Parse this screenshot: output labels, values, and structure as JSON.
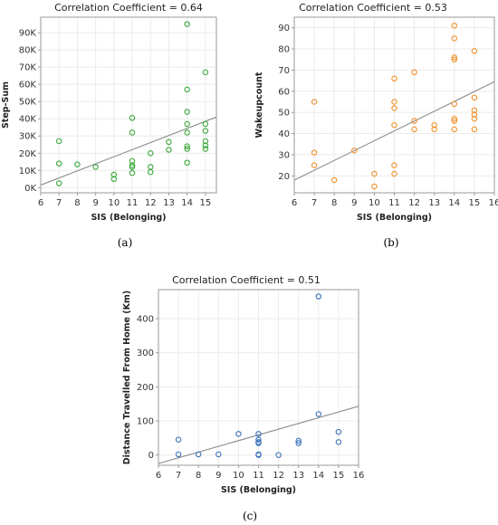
{
  "chart_data": [
    {
      "type": "scatter",
      "title": "Correlation Coefficient = 0.64",
      "xlabel": "SIS (Belonging)",
      "ylabel": "Step-Sum",
      "caption": "(a)",
      "color": "#3aa83a",
      "xlim": [
        6,
        15.6
      ],
      "ylim": [
        -3000,
        99000
      ],
      "xticks": [
        6,
        7,
        8,
        9,
        10,
        11,
        12,
        13,
        14,
        15
      ],
      "yticks": [
        0,
        10000,
        20000,
        30000,
        40000,
        50000,
        60000,
        70000,
        80000,
        90000
      ],
      "ytick_labels": [
        "0K",
        "10K",
        "20K",
        "30K",
        "40K",
        "50K",
        "60K",
        "70K",
        "80K",
        "90K"
      ],
      "grid": true,
      "trendline": [
        [
          6,
          1500
        ],
        [
          15.6,
          41000
        ]
      ],
      "points": [
        [
          7,
          27000
        ],
        [
          7,
          14000
        ],
        [
          7,
          2500
        ],
        [
          8,
          13500
        ],
        [
          9,
          12000
        ],
        [
          10,
          7500
        ],
        [
          10,
          5000
        ],
        [
          11,
          40500
        ],
        [
          11,
          32000
        ],
        [
          11,
          15500
        ],
        [
          11,
          13000
        ],
        [
          11,
          12000
        ],
        [
          11,
          8500
        ],
        [
          12,
          20000
        ],
        [
          12,
          12000
        ],
        [
          12,
          9000
        ],
        [
          13,
          26500
        ],
        [
          13,
          22000
        ],
        [
          14,
          95000
        ],
        [
          14,
          57000
        ],
        [
          14,
          44000
        ],
        [
          14,
          37000
        ],
        [
          14,
          32000
        ],
        [
          14,
          24000
        ],
        [
          14,
          22500
        ],
        [
          14,
          14500
        ],
        [
          15,
          67000
        ],
        [
          15,
          37000
        ],
        [
          15,
          33000
        ],
        [
          15,
          27000
        ],
        [
          15,
          24500
        ],
        [
          15,
          22500
        ]
      ]
    },
    {
      "type": "scatter",
      "title": "Correlation Coefficient = 0.53",
      "xlabel": "SIS (Belonging)",
      "ylabel": "Wakeupcount",
      "caption": "(b)",
      "color": "#f0922a",
      "xlim": [
        6,
        16
      ],
      "ylim": [
        12,
        95
      ],
      "xticks": [
        6,
        7,
        8,
        9,
        10,
        11,
        12,
        13,
        14,
        15,
        16
      ],
      "yticks": [
        20,
        30,
        40,
        50,
        60,
        70,
        80,
        90
      ],
      "ytick_labels": [
        "20",
        "30",
        "40",
        "50",
        "60",
        "70",
        "80",
        "90"
      ],
      "grid": true,
      "trendline": [
        [
          6,
          18
        ],
        [
          16,
          64.5
        ]
      ],
      "points": [
        [
          7,
          55
        ],
        [
          7,
          31
        ],
        [
          7,
          25
        ],
        [
          8,
          18
        ],
        [
          9,
          32
        ],
        [
          10,
          21
        ],
        [
          10,
          15
        ],
        [
          11,
          66
        ],
        [
          11,
          55
        ],
        [
          11,
          52
        ],
        [
          11,
          44
        ],
        [
          11,
          25
        ],
        [
          11,
          21
        ],
        [
          12,
          69
        ],
        [
          12,
          46
        ],
        [
          12,
          42
        ],
        [
          13,
          44
        ],
        [
          13,
          42
        ],
        [
          14,
          91
        ],
        [
          14,
          85
        ],
        [
          14,
          76
        ],
        [
          14,
          75
        ],
        [
          14,
          54
        ],
        [
          14,
          47
        ],
        [
          14,
          46
        ],
        [
          14,
          42
        ],
        [
          15,
          79
        ],
        [
          15,
          57
        ],
        [
          15,
          51
        ],
        [
          15,
          49
        ],
        [
          15,
          47
        ],
        [
          15,
          42
        ]
      ]
    },
    {
      "type": "scatter",
      "title": "Correlation Coefficient = 0.51",
      "xlabel": "SIS (Belonging)",
      "ylabel": "Distance Travelled From Home (Km)",
      "caption": "(c)",
      "color": "#3b73b9",
      "xlim": [
        6,
        16
      ],
      "ylim": [
        -30,
        485
      ],
      "xticks": [
        6,
        7,
        8,
        9,
        10,
        11,
        12,
        13,
        14,
        15,
        16
      ],
      "yticks": [
        0,
        100,
        200,
        300,
        400
      ],
      "ytick_labels": [
        "0",
        "100",
        "200",
        "300",
        "400"
      ],
      "grid": true,
      "trendline": [
        [
          6,
          -25
        ],
        [
          16,
          143
        ]
      ],
      "points": [
        [
          7,
          45
        ],
        [
          7,
          2
        ],
        [
          8,
          2
        ],
        [
          9,
          2
        ],
        [
          10,
          62
        ],
        [
          11,
          62
        ],
        [
          11,
          45
        ],
        [
          11,
          38
        ],
        [
          11,
          35
        ],
        [
          11,
          2
        ],
        [
          11,
          0
        ],
        [
          12,
          0
        ],
        [
          13,
          42
        ],
        [
          13,
          35
        ],
        [
          14,
          465
        ],
        [
          14,
          120
        ],
        [
          15,
          68
        ],
        [
          15,
          38
        ]
      ]
    }
  ]
}
